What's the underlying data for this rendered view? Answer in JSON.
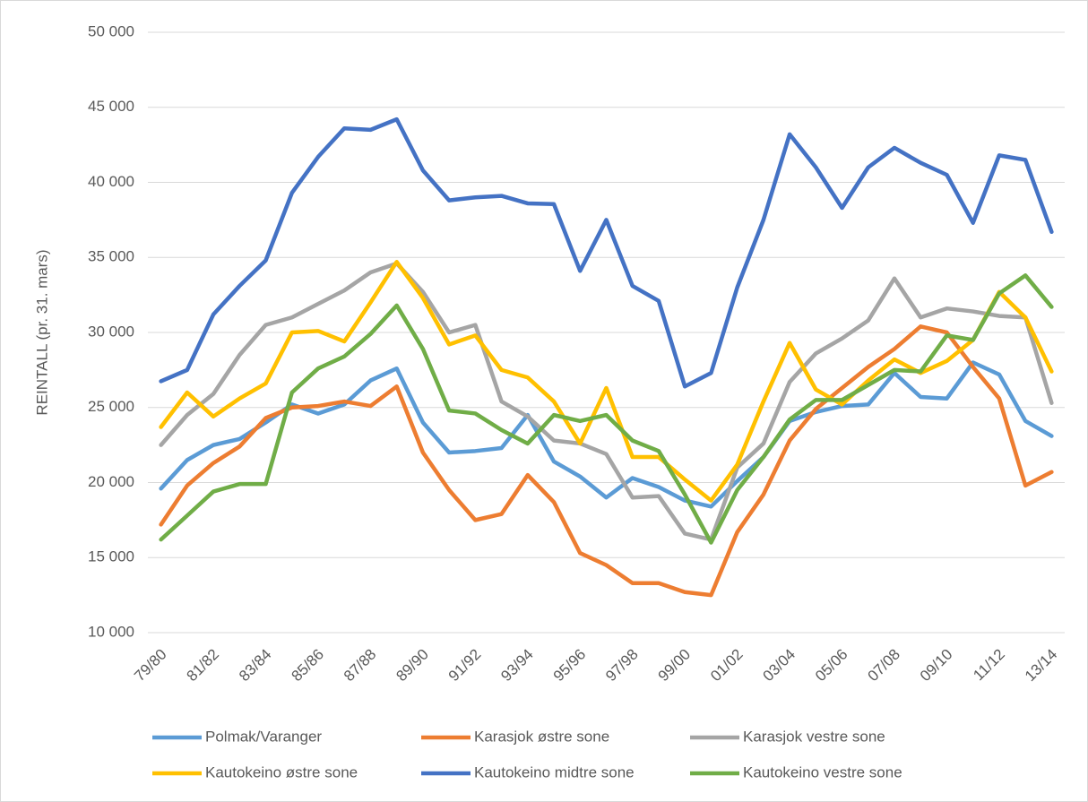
{
  "chart_data": {
    "type": "line",
    "y_label": "REINTALL (pr. 31. mars)",
    "categories": [
      "79/80",
      null,
      "81/82",
      null,
      "83/84",
      null,
      "85/86",
      null,
      "87/88",
      null,
      "89/90",
      null,
      "91/92",
      null,
      "93/94",
      null,
      "95/96",
      null,
      "97/98",
      null,
      "99/00",
      null,
      "01/02",
      null,
      "03/04",
      null,
      "05/06",
      null,
      "07/08",
      null,
      "09/10",
      null,
      "11/12",
      null,
      "13/14"
    ],
    "ylim": [
      10000,
      50000
    ],
    "yticks": [
      {
        "value": 10000,
        "label": "10 000"
      },
      {
        "value": 15000,
        "label": "15 000"
      },
      {
        "value": 20000,
        "label": "20 000"
      },
      {
        "value": 25000,
        "label": "25 000"
      },
      {
        "value": 30000,
        "label": "30 000"
      },
      {
        "value": 35000,
        "label": "35 000"
      },
      {
        "value": 40000,
        "label": "40 000"
      },
      {
        "value": 45000,
        "label": "45 000"
      },
      {
        "value": 50000,
        "label": "50 000"
      }
    ],
    "grid": true,
    "legend": "bottom",
    "series": [
      {
        "name": "Polmak/Varanger",
        "color": "#5b9bd5",
        "values": [
          19600,
          21500,
          22500,
          22900,
          24000,
          25200,
          24600,
          25200,
          26800,
          27600,
          24000,
          22000,
          22100,
          22300,
          24500,
          21400,
          20400,
          19000,
          20300,
          19700,
          18800,
          18400,
          20100,
          21700,
          24100,
          24700,
          25100,
          25200,
          27300,
          25700,
          25600,
          28000,
          27200,
          24100,
          23100
        ]
      },
      {
        "name": "Karasjok østre sone",
        "color": "#ed7d31",
        "values": [
          17200,
          19800,
          21300,
          22400,
          24300,
          25000,
          25100,
          25400,
          25100,
          26400,
          22000,
          19500,
          17500,
          17900,
          20500,
          18700,
          15300,
          14500,
          13300,
          13300,
          12700,
          12500,
          16700,
          19200,
          22800,
          24900,
          26300,
          27700,
          28900,
          30400,
          30000,
          27700,
          25600,
          19800,
          20700
        ]
      },
      {
        "name": "Karasjok vestre sone",
        "color": "#a5a5a5",
        "values": [
          22500,
          24500,
          25900,
          28500,
          30500,
          31000,
          31900,
          32800,
          34000,
          34600,
          32700,
          30000,
          30500,
          25400,
          24400,
          22800,
          22600,
          21900,
          19000,
          19100,
          16600,
          16200,
          21000,
          22600,
          26700,
          28600,
          29600,
          30800,
          33600,
          31000,
          31600,
          31400,
          31100,
          31000,
          25300
        ]
      },
      {
        "name": "Kautokeino østre sone",
        "color": "#ffc000",
        "values": [
          23700,
          26000,
          24400,
          25600,
          26600,
          30000,
          30100,
          29400,
          32000,
          34700,
          32300,
          29200,
          29800,
          27500,
          27000,
          25400,
          22600,
          26300,
          21700,
          21700,
          20200,
          18800,
          21200,
          25400,
          29300,
          26200,
          25200,
          26800,
          28200,
          27300,
          28100,
          29500,
          32700,
          31000,
          27400
        ]
      },
      {
        "name": "Kautokeino midtre sone",
        "color": "#4472c4",
        "values": [
          26750,
          27500,
          31200,
          33100,
          34800,
          39300,
          41700,
          43600,
          43500,
          44200,
          40800,
          38800,
          39000,
          39100,
          38600,
          38550,
          34100,
          37500,
          33100,
          32100,
          26400,
          27300,
          33000,
          37500,
          43200,
          41000,
          38300,
          41000,
          42300,
          41300,
          40500,
          37300,
          41800,
          41500,
          36700
        ]
      },
      {
        "name": "Kautokeino vestre sone",
        "color": "#70ad47",
        "values": [
          16200,
          17800,
          19400,
          19900,
          19900,
          26000,
          27600,
          28400,
          29900,
          31800,
          28900,
          24800,
          24600,
          23500,
          22600,
          24500,
          24100,
          24500,
          22800,
          22100,
          19200,
          16000,
          19500,
          21700,
          24200,
          25500,
          25500,
          26500,
          27500,
          27400,
          29800,
          29500,
          32600,
          33800,
          31700
        ]
      }
    ]
  }
}
